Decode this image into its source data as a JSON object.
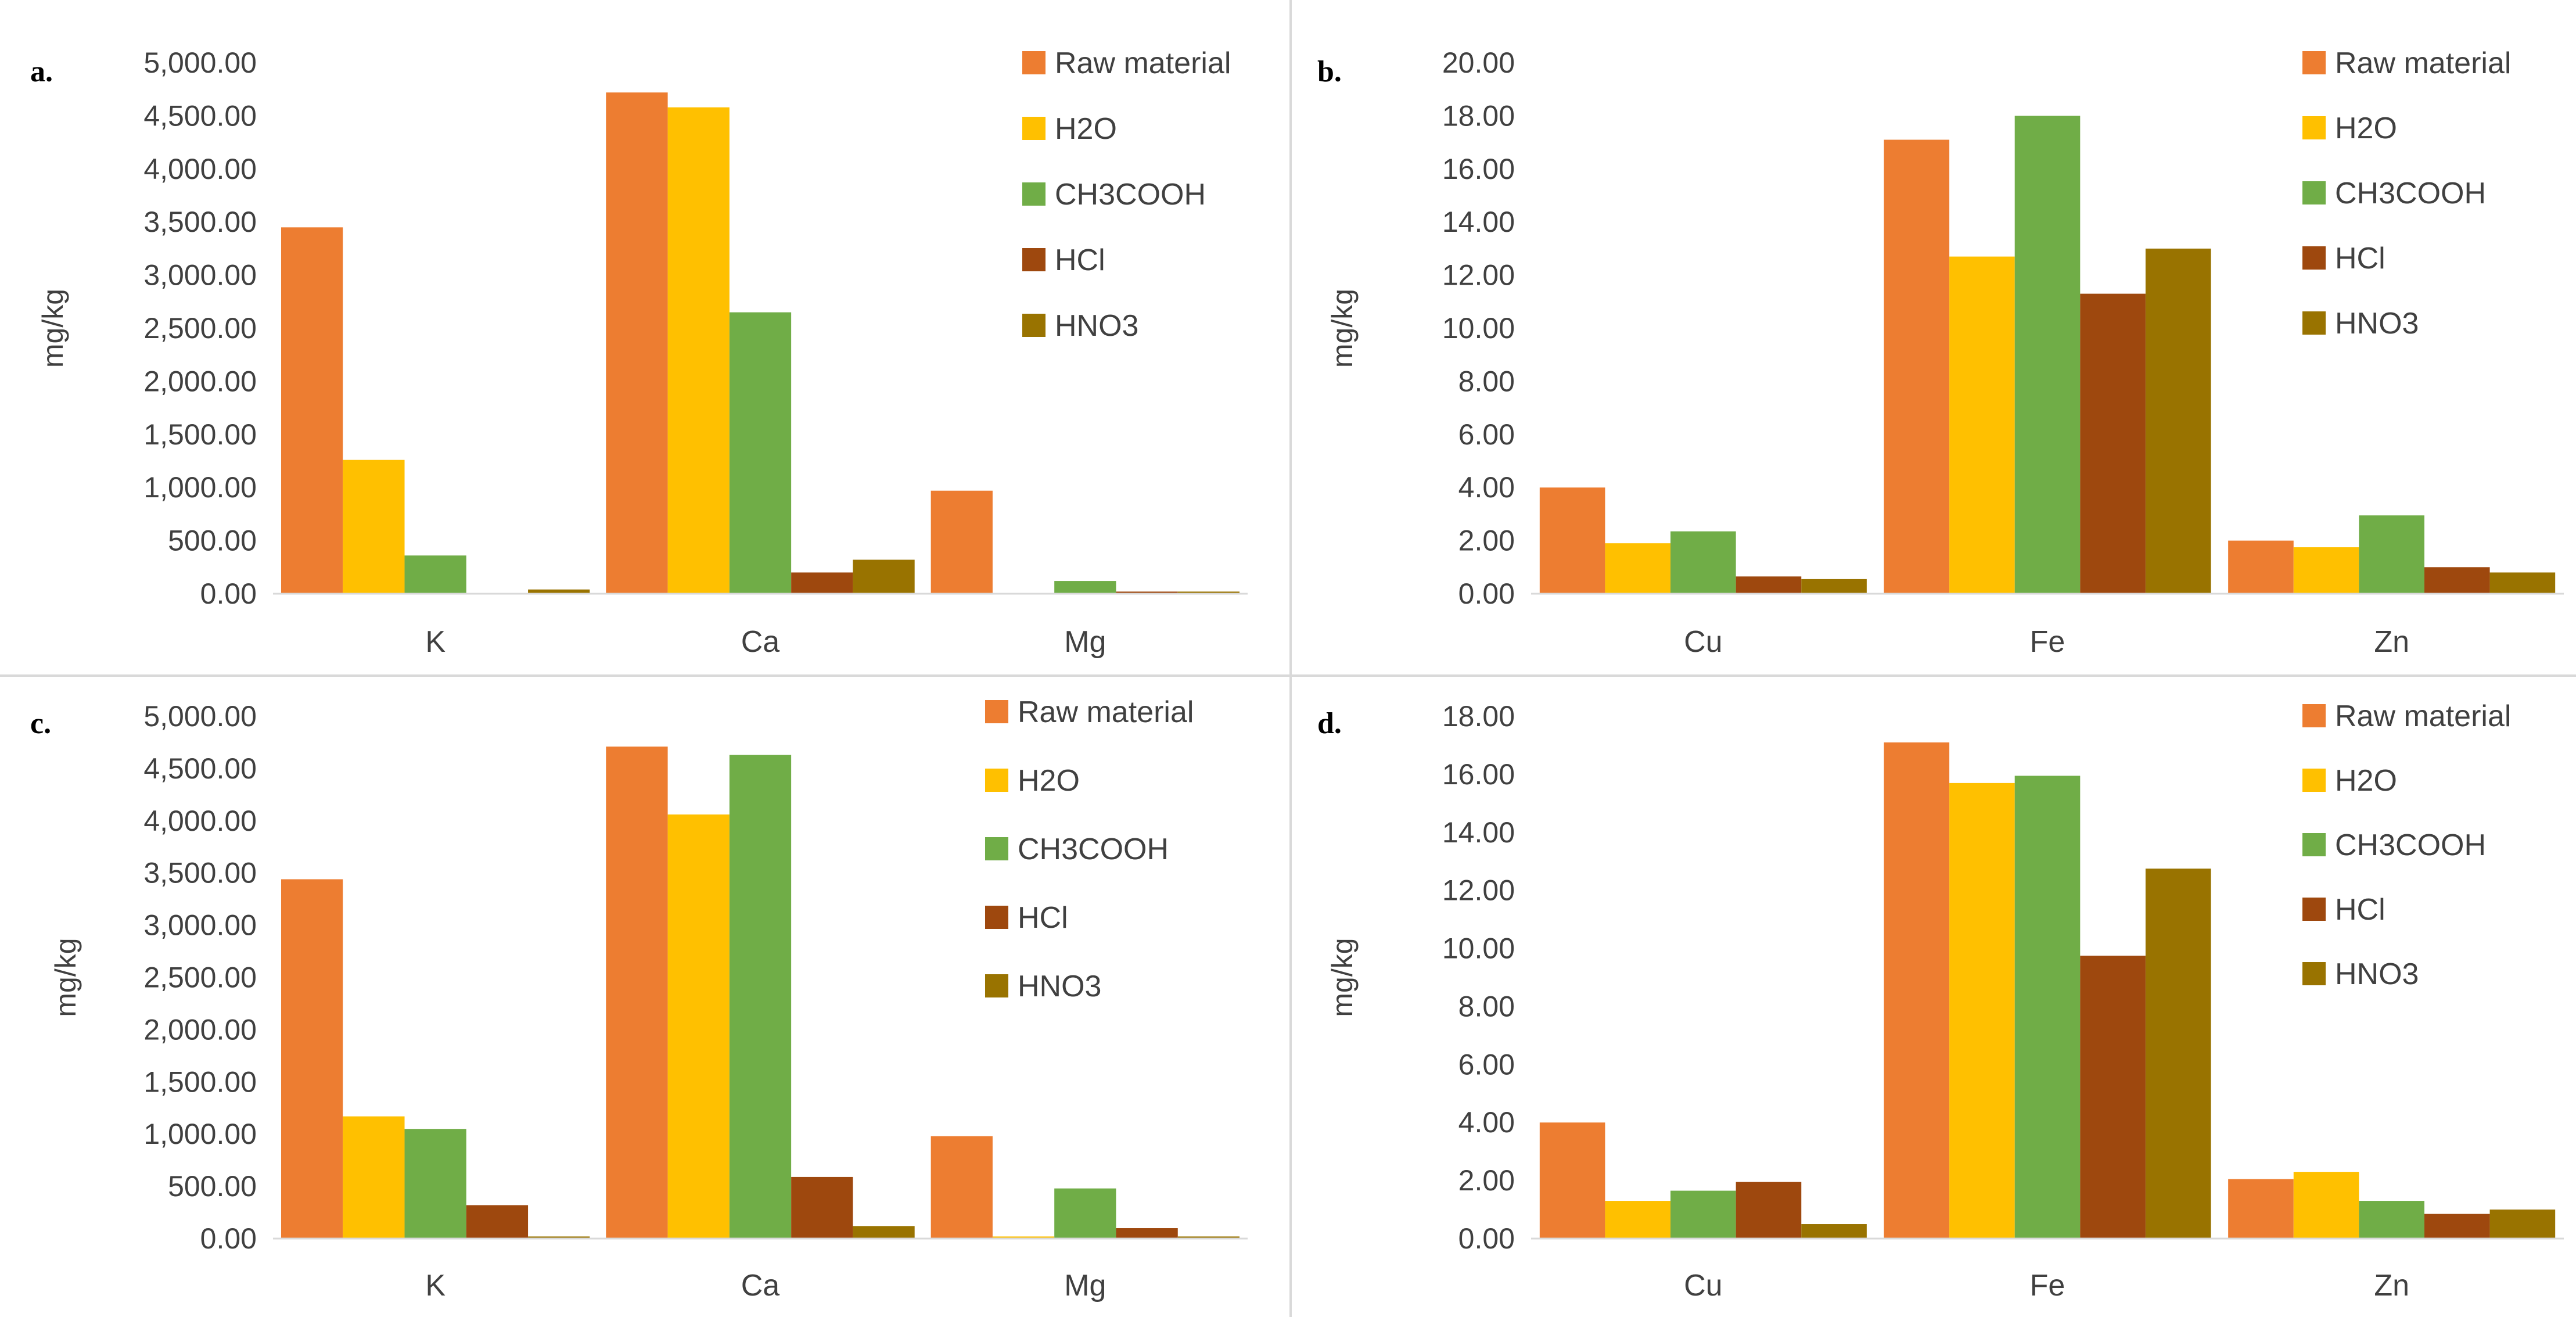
{
  "series_colors": {
    "Raw material": "#ED7D31",
    "H2O": "#FFC000",
    "CH3COOH": "#70AD47",
    "HCl": "#9E480E",
    "HNO3": "#997300"
  },
  "chart_data": [
    {
      "panel_label": "a.",
      "type": "bar",
      "categories": [
        "K",
        "Ca",
        "Mg"
      ],
      "ylabel": "mg/kg",
      "ylim": [
        0,
        5000
      ],
      "yticks": [
        0,
        500,
        1000,
        1500,
        2000,
        2500,
        3000,
        3500,
        4000,
        4500,
        5000
      ],
      "ytick_labels": [
        "0.00",
        "500.00",
        "1,000.00",
        "1,500.00",
        "2,000.00",
        "2,500.00",
        "3,000.00",
        "3,500.00",
        "4,000.00",
        "4,500.00",
        "5,000.00"
      ],
      "legend": [
        "Raw material",
        "H2O",
        "CH3COOH",
        "HCl",
        "HNO3"
      ],
      "series": [
        {
          "name": "Raw material",
          "values": [
            3450,
            4720,
            970
          ]
        },
        {
          "name": "H2O",
          "values": [
            1260,
            4580,
            0
          ]
        },
        {
          "name": "CH3COOH",
          "values": [
            360,
            2650,
            120
          ]
        },
        {
          "name": "HCl",
          "values": [
            0,
            200,
            20
          ]
        },
        {
          "name": "HNO3",
          "values": [
            40,
            320,
            20
          ]
        }
      ]
    },
    {
      "panel_label": "b.",
      "type": "bar",
      "categories": [
        "Cu",
        "Fe",
        "Zn"
      ],
      "ylabel": "mg/kg",
      "ylim": [
        0,
        20
      ],
      "yticks": [
        0,
        2,
        4,
        6,
        8,
        10,
        12,
        14,
        16,
        18,
        20
      ],
      "ytick_labels": [
        "0.00",
        "2.00",
        "4.00",
        "6.00",
        "8.00",
        "10.00",
        "12.00",
        "14.00",
        "16.00",
        "18.00",
        "20.00"
      ],
      "legend": [
        "Raw material",
        "H2O",
        "CH3COOH",
        "HCl",
        "HNO3"
      ],
      "series": [
        {
          "name": "Raw material",
          "values": [
            4.0,
            17.1,
            2.0
          ]
        },
        {
          "name": "H2O",
          "values": [
            1.9,
            12.7,
            1.75
          ]
        },
        {
          "name": "CH3COOH",
          "values": [
            2.35,
            18.0,
            2.95
          ]
        },
        {
          "name": "HCl",
          "values": [
            0.65,
            11.3,
            1.0
          ]
        },
        {
          "name": "HNO3",
          "values": [
            0.55,
            13.0,
            0.8
          ]
        }
      ]
    },
    {
      "panel_label": "c.",
      "type": "bar",
      "categories": [
        "K",
        "Ca",
        "Mg"
      ],
      "ylabel": "mg/kg",
      "ylim": [
        0,
        5000
      ],
      "yticks": [
        0,
        500,
        1000,
        1500,
        2000,
        2500,
        3000,
        3500,
        4000,
        4500,
        5000
      ],
      "ytick_labels": [
        "0.00",
        "500.00",
        "1,000.00",
        "1,500.00",
        "2,000.00",
        "2,500.00",
        "3,000.00",
        "3,500.00",
        "4,000.00",
        "4,500.00",
        "5,000.00"
      ],
      "legend": [
        "Raw material",
        "H2O",
        "CH3COOH",
        "HCl",
        "HNO3"
      ],
      "series": [
        {
          "name": "Raw material",
          "values": [
            3440,
            4710,
            980
          ]
        },
        {
          "name": "H2O",
          "values": [
            1170,
            4060,
            20
          ]
        },
        {
          "name": "CH3COOH",
          "values": [
            1050,
            4630,
            480
          ]
        },
        {
          "name": "HCl",
          "values": [
            320,
            590,
            100
          ]
        },
        {
          "name": "HNO3",
          "values": [
            20,
            120,
            20
          ]
        }
      ]
    },
    {
      "panel_label": "d.",
      "type": "bar",
      "categories": [
        "Cu",
        "Fe",
        "Zn"
      ],
      "ylabel": "mg/kg",
      "ylim": [
        0,
        18
      ],
      "yticks": [
        0,
        2,
        4,
        6,
        8,
        10,
        12,
        14,
        16,
        18
      ],
      "ytick_labels": [
        "0.00",
        "2.00",
        "4.00",
        "6.00",
        "8.00",
        "10.00",
        "12.00",
        "14.00",
        "16.00",
        "18.00"
      ],
      "legend": [
        "Raw material",
        "H2O",
        "CH3COOH",
        "HCl",
        "HNO3"
      ],
      "series": [
        {
          "name": "Raw material",
          "values": [
            4.0,
            17.1,
            2.05
          ]
        },
        {
          "name": "H2O",
          "values": [
            1.3,
            15.7,
            2.3
          ]
        },
        {
          "name": "CH3COOH",
          "values": [
            1.65,
            15.95,
            1.3
          ]
        },
        {
          "name": "HCl",
          "values": [
            1.95,
            9.75,
            0.85
          ]
        },
        {
          "name": "HNO3",
          "values": [
            0.5,
            12.75,
            1.0
          ]
        }
      ]
    }
  ]
}
